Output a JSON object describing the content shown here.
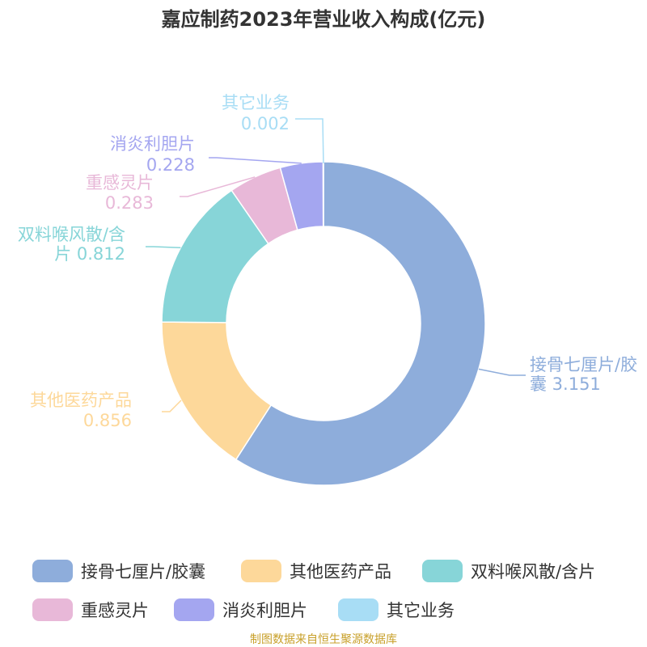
{
  "chart_data": {
    "type": "pie",
    "variant": "donut",
    "title": "嘉应制药2023年营业收入构成(亿元)",
    "source": "制图数据来自恒生聚源数据库",
    "legend_position": "bottom",
    "slices": [
      {
        "name": "接骨七厘片/胶囊",
        "value": 3.151,
        "value_label": "3.151",
        "color": "#8eaddb",
        "label_lines": [
          "接骨七厘片/胶",
          "囊 3.151"
        ]
      },
      {
        "name": "其他医药产品",
        "value": 0.856,
        "value_label": "0.856",
        "color": "#fdd89a",
        "label_lines": [
          "其他医药产品",
          "0.856"
        ]
      },
      {
        "name": "双料喉风散/含片",
        "value": 0.812,
        "value_label": "0.812",
        "color": "#87d5d8",
        "label_lines": [
          "双料喉风散/含",
          "片 0.812"
        ]
      },
      {
        "name": "重感灵片",
        "value": 0.283,
        "value_label": "0.283",
        "color": "#e8b8d8",
        "label_lines": [
          "重感灵片",
          "0.283"
        ]
      },
      {
        "name": "消炎利胆片",
        "value": 0.228,
        "value_label": "0.228",
        "color": "#a4a6f0",
        "label_lines": [
          "消炎利胆片",
          "0.228"
        ]
      },
      {
        "name": "其它业务",
        "value": 0.002,
        "value_label": "0.002",
        "color": "#a8ddf5",
        "label_lines": [
          "其它业务",
          "0.002"
        ]
      }
    ]
  }
}
